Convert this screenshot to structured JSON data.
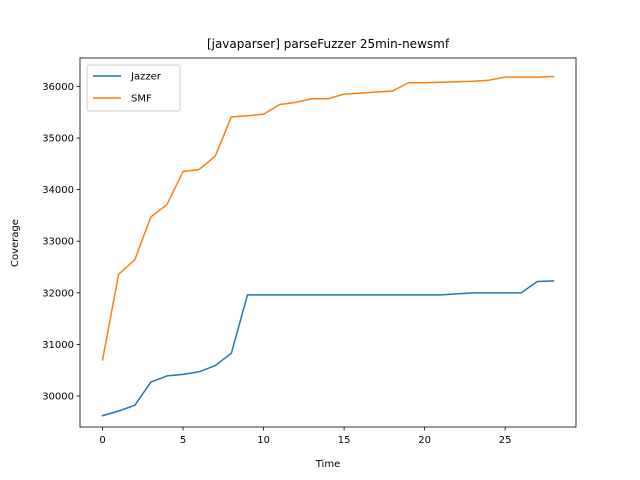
{
  "chart_data": {
    "type": "line",
    "title": "[javaparser] parseFuzzer 25min-newsmf",
    "xlabel": "Time",
    "ylabel": "Coverage",
    "xlim": [
      -1.4,
      29.4
    ],
    "ylim": [
      29400,
      36550
    ],
    "xticks": [
      0,
      5,
      10,
      15,
      20,
      25
    ],
    "yticks": [
      30000,
      31000,
      32000,
      33000,
      34000,
      35000,
      36000
    ],
    "grid": false,
    "legend": "top-left",
    "series": [
      {
        "name": "Jazzer",
        "color": "#1f77b4",
        "x": [
          0,
          1,
          2,
          3,
          4,
          5,
          6,
          7,
          8,
          9,
          10,
          11,
          12,
          13,
          14,
          15,
          16,
          17,
          18,
          19,
          20,
          21,
          22,
          23,
          24,
          25,
          26,
          27,
          28
        ],
        "values": [
          29620,
          29710,
          29820,
          30270,
          30390,
          30420,
          30470,
          30590,
          30830,
          31960,
          31960,
          31960,
          31960,
          31960,
          31960,
          31960,
          31960,
          31960,
          31960,
          31960,
          31960,
          31960,
          31980,
          32000,
          32000,
          32000,
          32000,
          32220,
          32230
        ]
      },
      {
        "name": "SMF",
        "color": "#ff7f0e",
        "x": [
          0,
          1,
          2,
          3,
          4,
          5,
          6,
          7,
          8,
          9,
          10,
          11,
          12,
          13,
          14,
          15,
          16,
          17,
          18,
          19,
          20,
          21,
          22,
          23,
          24,
          25,
          26,
          27,
          28
        ],
        "values": [
          30700,
          32360,
          32640,
          33470,
          33710,
          34350,
          34390,
          34650,
          35410,
          35430,
          35460,
          35650,
          35690,
          35760,
          35760,
          35850,
          35870,
          35890,
          35910,
          36070,
          36070,
          36080,
          36090,
          36100,
          36120,
          36180,
          36180,
          36180,
          36190
        ]
      }
    ]
  }
}
